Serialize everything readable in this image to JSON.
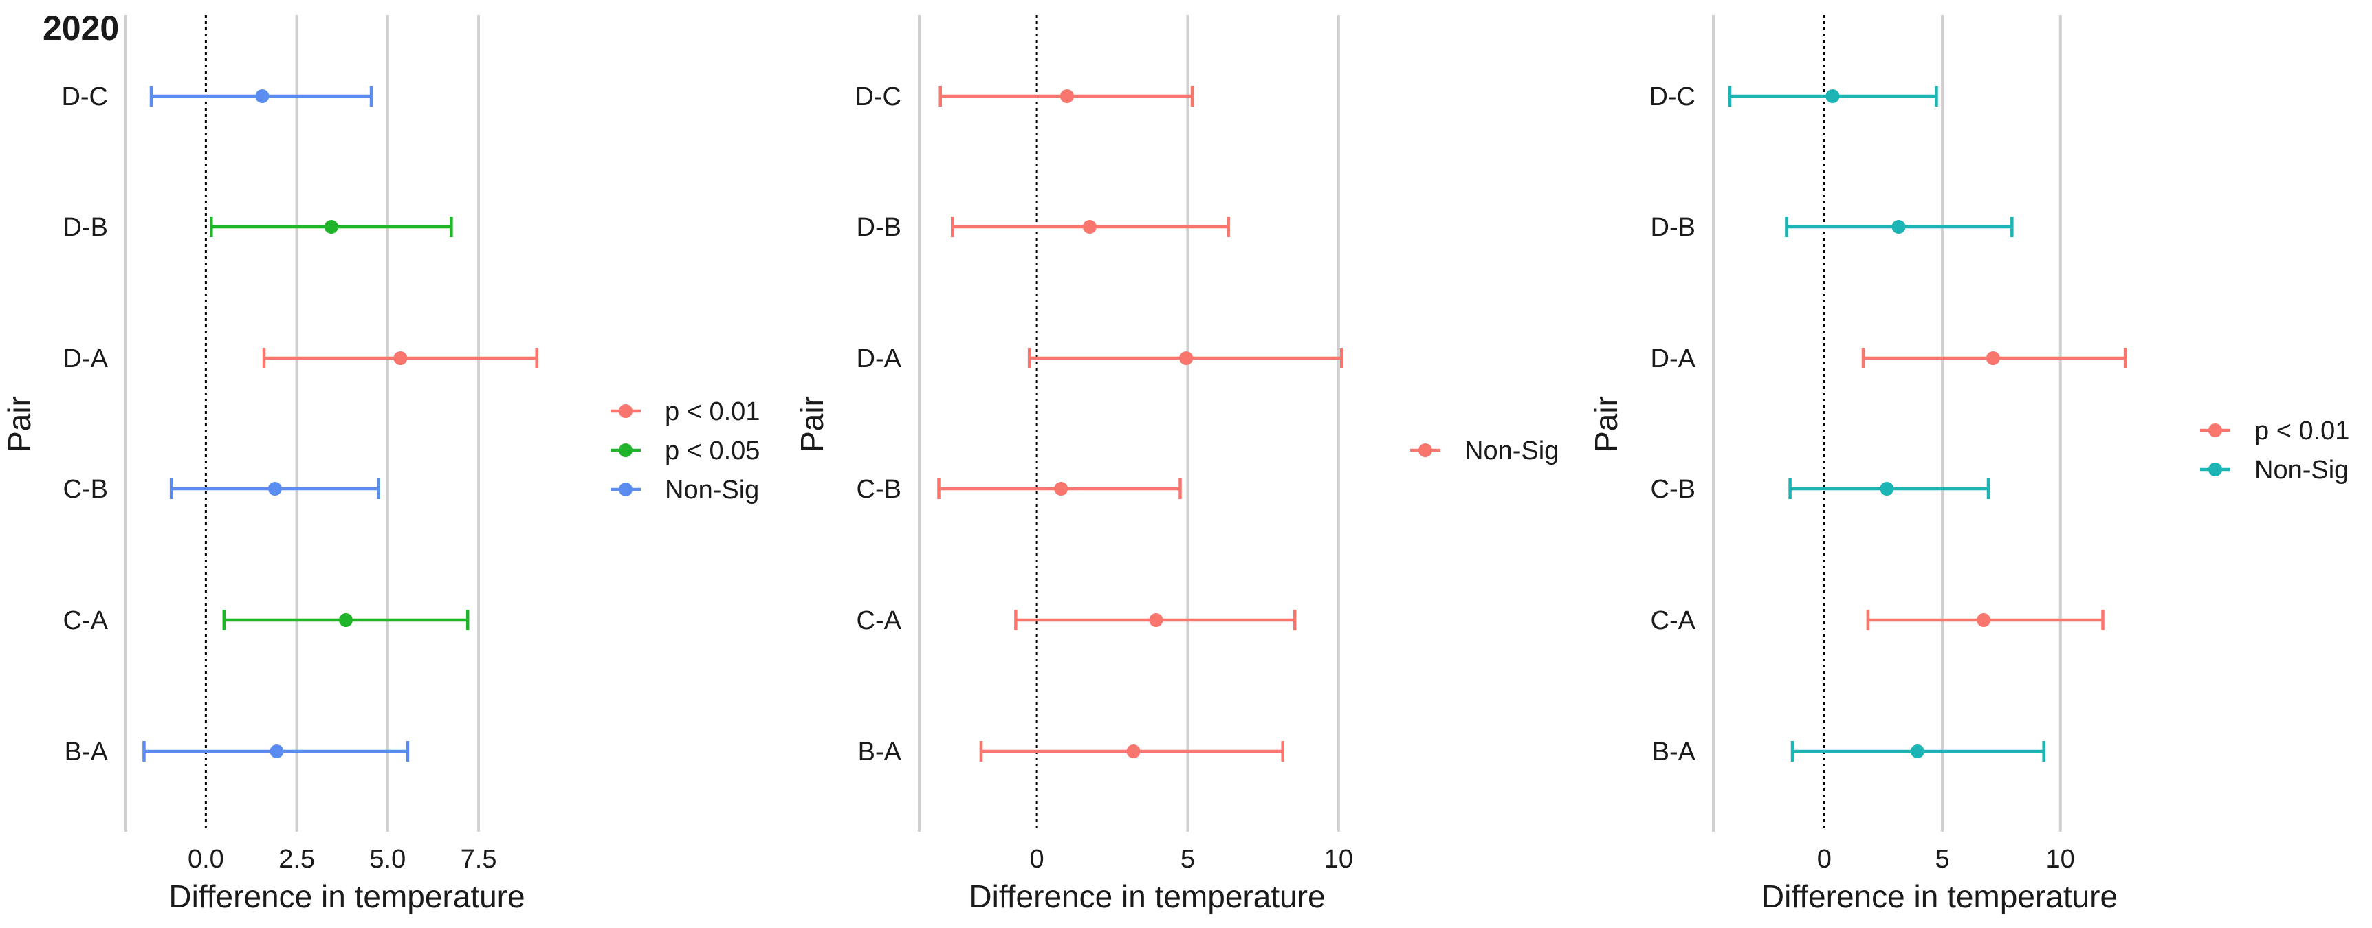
{
  "figure_title": "2020",
  "colors": {
    "p < 0.01": "#F8766D",
    "p < 0.05": "#1FB429",
    "Non-Sig": "#5B8DF0",
    "Non-Sig (teal)": "#1CB4B4",
    "gridline": "#D0D0D0",
    "zero_line": "#000000"
  },
  "chart_data": [
    {
      "type": "errorbar",
      "title": "2020",
      "xlabel": "Difference in temperature",
      "ylabel": "Pair",
      "xlim": [
        -2.2,
        9.2
      ],
      "xticks": [
        0,
        2.5,
        5,
        7.5
      ],
      "xtick_labels": [
        "0.0",
        "2.5",
        "5.0",
        "7.5"
      ],
      "categories": [
        "D-C",
        "D-B",
        "D-A",
        "C-B",
        "C-A",
        "B-A"
      ],
      "estimates": [
        1.55,
        3.45,
        5.35,
        1.9,
        3.85,
        1.95
      ],
      "lower": [
        -1.5,
        0.15,
        1.6,
        -0.95,
        0.5,
        -1.7
      ],
      "upper": [
        4.55,
        6.75,
        9.1,
        4.75,
        7.2,
        5.55
      ],
      "significance": [
        "Non-Sig",
        "p < 0.05",
        "p < 0.01",
        "Non-Sig",
        "p < 0.05",
        "Non-Sig"
      ],
      "series_colors": [
        "#5B8DF0",
        "#1FB429",
        "#F8766D",
        "#5B8DF0",
        "#1FB429",
        "#5B8DF0"
      ],
      "legend": [
        {
          "label": "p < 0.01",
          "color": "#F8766D"
        },
        {
          "label": "p < 0.05",
          "color": "#1FB429"
        },
        {
          "label": "Non-Sig",
          "color": "#5B8DF0"
        }
      ],
      "grid": true,
      "zero_line": "dotted",
      "legend_position": "right"
    },
    {
      "type": "errorbar",
      "xlabel": "Difference in temperature",
      "ylabel": "Pair",
      "xlim": [
        -3.9,
        10.3
      ],
      "xticks": [
        0,
        5,
        10
      ],
      "xtick_labels": [
        "0",
        "5",
        "10"
      ],
      "categories": [
        "D-C",
        "D-B",
        "D-A",
        "C-B",
        "C-A",
        "B-A"
      ],
      "estimates": [
        1.0,
        1.75,
        4.95,
        0.8,
        3.95,
        3.2
      ],
      "lower": [
        -3.2,
        -2.8,
        -0.25,
        -3.25,
        -0.7,
        -1.85
      ],
      "upper": [
        5.15,
        6.35,
        10.1,
        4.75,
        8.55,
        8.15
      ],
      "significance": [
        "Non-Sig",
        "Non-Sig",
        "Non-Sig",
        "Non-Sig",
        "Non-Sig",
        "Non-Sig"
      ],
      "series_colors": [
        "#F8766D",
        "#F8766D",
        "#F8766D",
        "#F8766D",
        "#F8766D",
        "#F8766D"
      ],
      "legend": [
        {
          "label": "Non-Sig",
          "color": "#F8766D"
        }
      ],
      "grid": true,
      "zero_line": "dotted",
      "legend_position": "right"
    },
    {
      "type": "errorbar",
      "xlabel": "Difference in temperature",
      "ylabel": "Pair",
      "xlim": [
        -4.7,
        13.3
      ],
      "xticks": [
        0,
        5,
        10
      ],
      "xtick_labels": [
        "0",
        "5",
        "10"
      ],
      "categories": [
        "D-C",
        "D-B",
        "D-A",
        "C-B",
        "C-A",
        "B-A"
      ],
      "estimates": [
        0.35,
        3.15,
        7.15,
        2.65,
        6.75,
        3.95
      ],
      "lower": [
        -4.0,
        -1.6,
        1.65,
        -1.45,
        1.85,
        -1.35
      ],
      "upper": [
        4.75,
        7.95,
        12.75,
        6.95,
        11.8,
        9.3
      ],
      "significance": [
        "Non-Sig",
        "Non-Sig",
        "p < 0.01",
        "Non-Sig",
        "p < 0.01",
        "Non-Sig"
      ],
      "series_colors": [
        "#1CB4B4",
        "#1CB4B4",
        "#F8766D",
        "#1CB4B4",
        "#F8766D",
        "#1CB4B4"
      ],
      "legend": [
        {
          "label": "p < 0.01",
          "color": "#F8766D"
        },
        {
          "label": "Non-Sig",
          "color": "#1CB4B4"
        }
      ],
      "grid": true,
      "zero_line": "dotted",
      "legend_position": "right"
    }
  ]
}
